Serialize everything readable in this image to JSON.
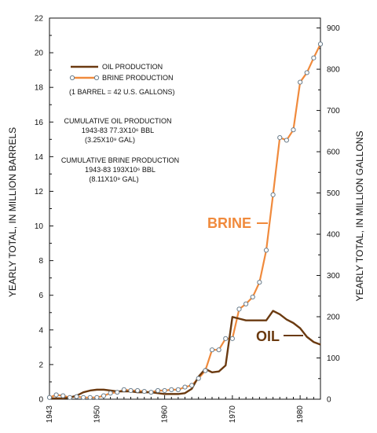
{
  "chart_data": {
    "type": "line",
    "title": "",
    "xlabel": "",
    "ylabel": "YEARLY TOTAL, IN MILLION BARRELS",
    "ylabel_right": "YEARLY TOTAL, IN MILLION GALLONS",
    "xlim": [
      1943,
      1983
    ],
    "ylim": [
      0,
      22
    ],
    "ylim_right": [
      0,
      924
    ],
    "x_ticks": [
      1943,
      1950,
      1960,
      1970,
      1980
    ],
    "y_ticks": [
      0,
      2,
      4,
      6,
      8,
      10,
      12,
      14,
      16,
      18,
      20,
      22
    ],
    "y_ticks_right": [
      0,
      100,
      200,
      300,
      400,
      500,
      600,
      700,
      800,
      900
    ],
    "grid": false,
    "legend_position": "top-left",
    "series": [
      {
        "name": "OIL PRODUCTION",
        "color": "#6b3a10",
        "marker": "none",
        "x": [
          1943,
          1944,
          1945,
          1946,
          1947,
          1948,
          1949,
          1950,
          1951,
          1952,
          1953,
          1954,
          1955,
          1956,
          1957,
          1958,
          1959,
          1960,
          1961,
          1962,
          1963,
          1964,
          1965,
          1966,
          1967,
          1968,
          1969,
          1970,
          1971,
          1972,
          1973,
          1974,
          1975,
          1976,
          1977,
          1978,
          1979,
          1980,
          1981,
          1982,
          1983
        ],
        "values": [
          0.05,
          0.05,
          0.05,
          0.1,
          0.2,
          0.4,
          0.5,
          0.55,
          0.55,
          0.5,
          0.45,
          0.45,
          0.45,
          0.4,
          0.4,
          0.4,
          0.35,
          0.3,
          0.3,
          0.3,
          0.35,
          0.6,
          1.3,
          1.75,
          1.55,
          1.6,
          1.95,
          4.75,
          4.65,
          4.55,
          4.55,
          4.55,
          4.55,
          5.1,
          4.9,
          4.6,
          4.4,
          4.1,
          3.6,
          3.3,
          3.15
        ]
      },
      {
        "name": "BRINE PRODUCTION",
        "color": "#f08a3c",
        "marker": "circle",
        "x": [
          1943,
          1944,
          1945,
          1946,
          1947,
          1948,
          1949,
          1950,
          1951,
          1952,
          1953,
          1954,
          1955,
          1956,
          1957,
          1958,
          1959,
          1960,
          1961,
          1962,
          1963,
          1964,
          1965,
          1966,
          1967,
          1968,
          1969,
          1970,
          1971,
          1972,
          1973,
          1974,
          1975,
          1976,
          1977,
          1978,
          1979,
          1980,
          1981,
          1982,
          1983
        ],
        "values": [
          0.1,
          0.25,
          0.2,
          0.1,
          0.15,
          0.1,
          0.1,
          0.1,
          0.2,
          0.35,
          0.4,
          0.55,
          0.5,
          0.5,
          0.45,
          0.4,
          0.5,
          0.5,
          0.55,
          0.55,
          0.7,
          0.8,
          1.2,
          1.65,
          2.85,
          2.85,
          3.5,
          3.5,
          5.2,
          5.5,
          5.9,
          6.75,
          8.6,
          11.8,
          15.1,
          14.95,
          15.55,
          18.3,
          18.85,
          19.7,
          20.5
        ]
      }
    ],
    "legend": {
      "oil_label": "OIL PRODUCTION",
      "brine_label": "BRINE PRODUCTION",
      "conversion_note": "(1 BARREL = 42 U.S. GALLONS)"
    },
    "notes": [
      {
        "line1": "CUMULATIVE OIL PRODUCTION",
        "line2": "1943-83  77.3X10⁶ BBL",
        "line3": "(3.25X10⁹ GAL)"
      },
      {
        "line1": "CUMULATIVE BRINE PRODUCTION",
        "line2": "1943-83  193X10⁶ BBL",
        "line3": "(8.11X10⁹ GAL)"
      }
    ],
    "annotations": {
      "brine": "BRINE",
      "oil": "OIL"
    }
  }
}
